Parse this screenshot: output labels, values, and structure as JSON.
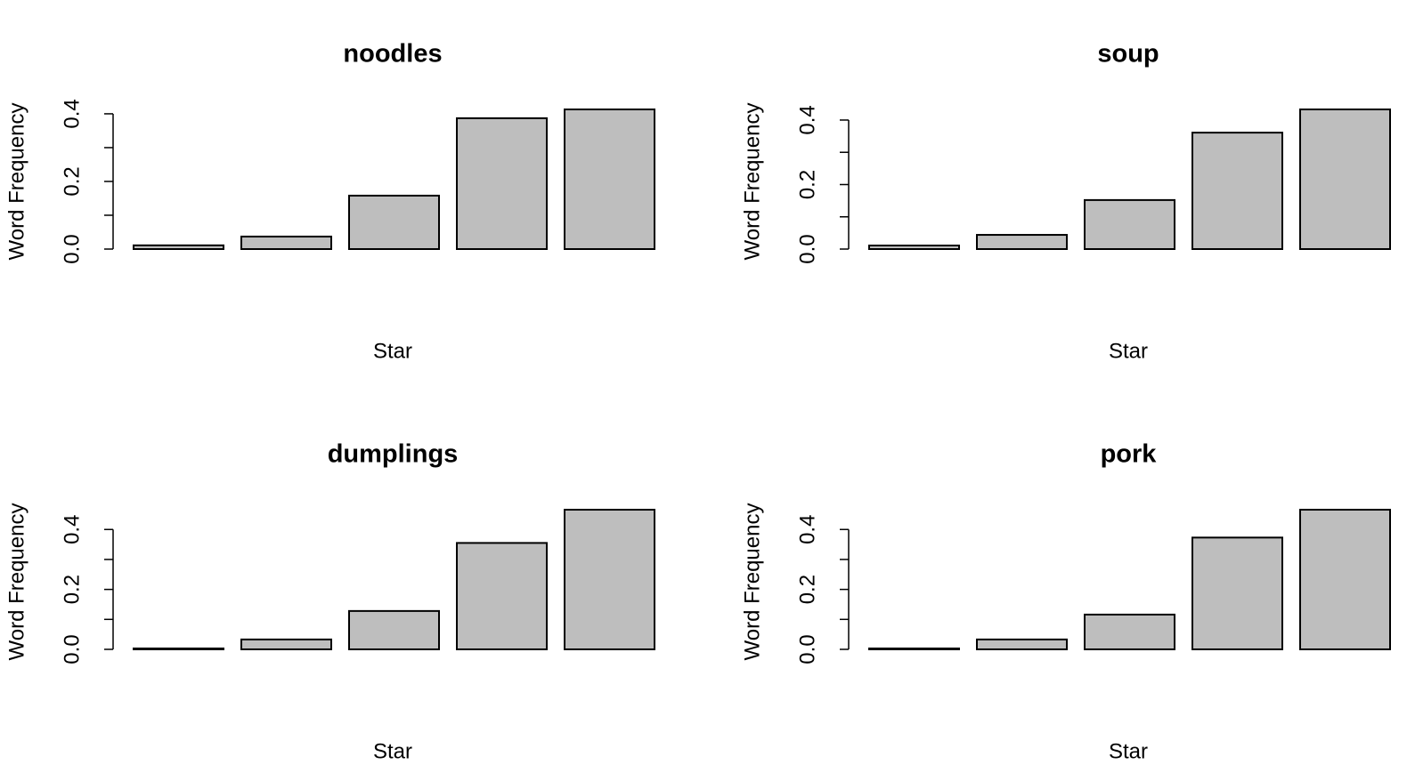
{
  "chart_data": [
    {
      "type": "bar",
      "title": "noodles",
      "xlabel": "Star",
      "ylabel": "Word Frequency",
      "categories": [
        null,
        null,
        null,
        null,
        null
      ],
      "values": [
        0.011,
        0.037,
        0.158,
        0.387,
        0.413
      ],
      "color": "#bebebe",
      "ylim": [
        0,
        0.413
      ],
      "yticks": [
        {
          "value": 0,
          "label": "0.0"
        },
        {
          "value": 0.1,
          "label": null
        },
        {
          "value": 0.2,
          "label": "0.2"
        },
        {
          "value": 0.3,
          "label": null
        },
        {
          "value": 0.4,
          "label": "0.4"
        }
      ]
    },
    {
      "type": "bar",
      "title": "soup",
      "xlabel": "Star",
      "ylabel": "Word Frequency",
      "categories": [
        null,
        null,
        null,
        null,
        null
      ],
      "values": [
        0.011,
        0.044,
        0.152,
        0.361,
        0.433
      ],
      "color": "#bebebe",
      "ylim": [
        0,
        0.433
      ],
      "yticks": [
        {
          "value": 0,
          "label": "0.0"
        },
        {
          "value": 0.1,
          "label": null
        },
        {
          "value": 0.2,
          "label": "0.2"
        },
        {
          "value": 0.3,
          "label": null
        },
        {
          "value": 0.4,
          "label": "0.4"
        }
      ]
    },
    {
      "type": "bar",
      "title": "dumplings",
      "xlabel": "Star",
      "ylabel": "Word Frequency",
      "categories": [
        null,
        null,
        null,
        null,
        null
      ],
      "values": [
        0.003,
        0.033,
        0.128,
        0.355,
        0.466
      ],
      "color": "#bebebe",
      "ylim": [
        0,
        0.466
      ],
      "yticks": [
        {
          "value": 0,
          "label": "0.0"
        },
        {
          "value": 0.1,
          "label": null
        },
        {
          "value": 0.2,
          "label": "0.2"
        },
        {
          "value": 0.3,
          "label": null
        },
        {
          "value": 0.4,
          "label": "0.4"
        }
      ]
    },
    {
      "type": "bar",
      "title": "pork",
      "xlabel": "Star",
      "ylabel": "Word Frequency",
      "categories": [
        null,
        null,
        null,
        null,
        null
      ],
      "values": [
        0.003,
        0.033,
        0.116,
        0.373,
        0.466
      ],
      "color": "#bebebe",
      "ylim": [
        0,
        0.466
      ],
      "yticks": [
        {
          "value": 0,
          "label": "0.0"
        },
        {
          "value": 0.1,
          "label": null
        },
        {
          "value": 0.2,
          "label": "0.2"
        },
        {
          "value": 0.3,
          "label": null
        },
        {
          "value": 0.4,
          "label": "0.4"
        }
      ]
    }
  ]
}
